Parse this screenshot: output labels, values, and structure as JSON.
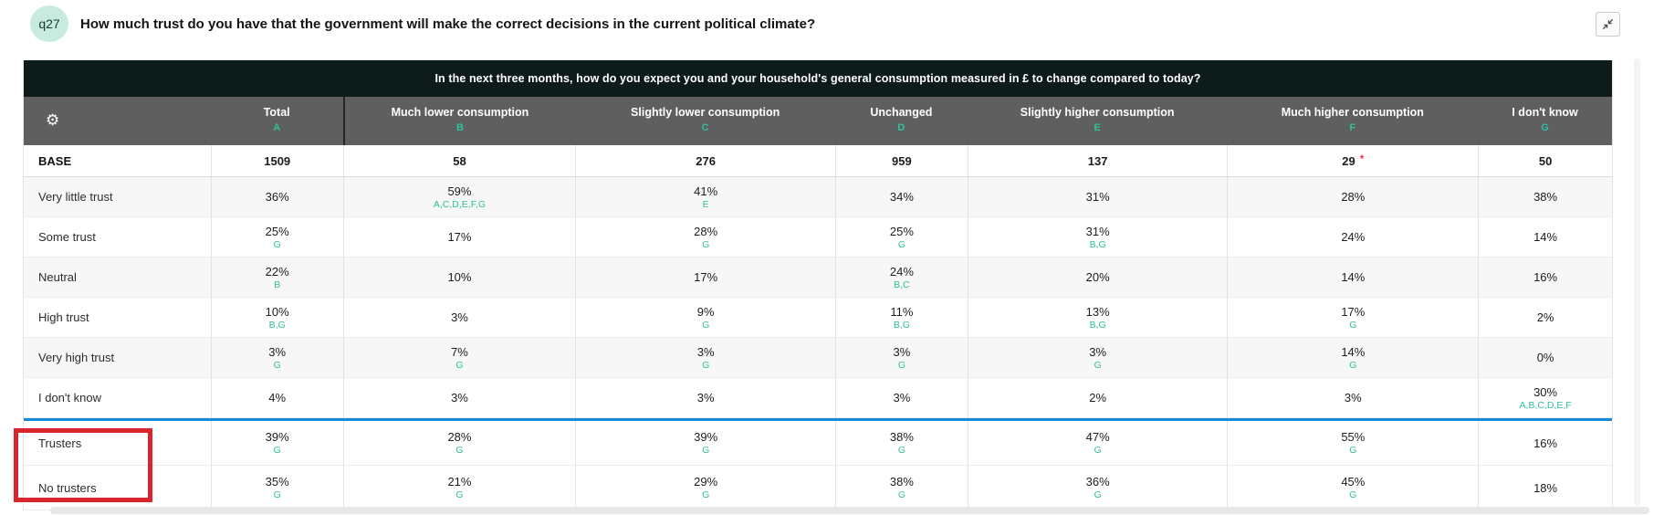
{
  "question": {
    "id": "q27",
    "text": "How much trust do you have that the government will make the correct decisions in the current political climate?"
  },
  "banner_question": "In the next three months, how do you expect you and your household's general consumption measured in £ to change compared to today?",
  "columns": [
    {
      "label": "Total",
      "letter": "A"
    },
    {
      "label": "Much lower consumption",
      "letter": "B"
    },
    {
      "label": "Slightly lower consumption",
      "letter": "C"
    },
    {
      "label": "Unchanged",
      "letter": "D"
    },
    {
      "label": "Slightly higher consumption",
      "letter": "E"
    },
    {
      "label": "Much higher consumption",
      "letter": "F"
    },
    {
      "label": "I don't know",
      "letter": "G"
    }
  ],
  "base_row": {
    "label": "BASE",
    "values": [
      "1509",
      "58",
      "276",
      "959",
      "137",
      "29",
      "50"
    ],
    "low_base_flag_column": "F",
    "low_base_marker": "*"
  },
  "rows": [
    {
      "label": "Very little trust",
      "cells": [
        {
          "v": "36%",
          "sig": ""
        },
        {
          "v": "59%",
          "sig": "A,C,D,E,F,G"
        },
        {
          "v": "41%",
          "sig": "E"
        },
        {
          "v": "34%",
          "sig": ""
        },
        {
          "v": "31%",
          "sig": ""
        },
        {
          "v": "28%",
          "sig": ""
        },
        {
          "v": "38%",
          "sig": ""
        }
      ]
    },
    {
      "label": "Some trust",
      "cells": [
        {
          "v": "25%",
          "sig": "G"
        },
        {
          "v": "17%",
          "sig": ""
        },
        {
          "v": "28%",
          "sig": "G"
        },
        {
          "v": "25%",
          "sig": "G"
        },
        {
          "v": "31%",
          "sig": "B,G"
        },
        {
          "v": "24%",
          "sig": ""
        },
        {
          "v": "14%",
          "sig": ""
        }
      ]
    },
    {
      "label": "Neutral",
      "cells": [
        {
          "v": "22%",
          "sig": "B"
        },
        {
          "v": "10%",
          "sig": ""
        },
        {
          "v": "17%",
          "sig": ""
        },
        {
          "v": "24%",
          "sig": "B,C"
        },
        {
          "v": "20%",
          "sig": ""
        },
        {
          "v": "14%",
          "sig": ""
        },
        {
          "v": "16%",
          "sig": ""
        }
      ]
    },
    {
      "label": "High trust",
      "cells": [
        {
          "v": "10%",
          "sig": "B,G"
        },
        {
          "v": "3%",
          "sig": ""
        },
        {
          "v": "9%",
          "sig": "G"
        },
        {
          "v": "11%",
          "sig": "B,G"
        },
        {
          "v": "13%",
          "sig": "B,G"
        },
        {
          "v": "17%",
          "sig": "G"
        },
        {
          "v": "2%",
          "sig": ""
        }
      ]
    },
    {
      "label": "Very high trust",
      "cells": [
        {
          "v": "3%",
          "sig": "G"
        },
        {
          "v": "7%",
          "sig": "G"
        },
        {
          "v": "3%",
          "sig": "G"
        },
        {
          "v": "3%",
          "sig": "G"
        },
        {
          "v": "3%",
          "sig": "G"
        },
        {
          "v": "14%",
          "sig": "G"
        },
        {
          "v": "0%",
          "sig": ""
        }
      ]
    },
    {
      "label": "I don't know",
      "cells": [
        {
          "v": "4%",
          "sig": ""
        },
        {
          "v": "3%",
          "sig": ""
        },
        {
          "v": "3%",
          "sig": ""
        },
        {
          "v": "3%",
          "sig": ""
        },
        {
          "v": "2%",
          "sig": ""
        },
        {
          "v": "3%",
          "sig": ""
        },
        {
          "v": "30%",
          "sig": "A,B,C,D,E,F"
        }
      ]
    }
  ],
  "summary_rows": [
    {
      "label": "Trusters",
      "cells": [
        {
          "v": "39%",
          "sig": "G"
        },
        {
          "v": "28%",
          "sig": "G"
        },
        {
          "v": "39%",
          "sig": "G"
        },
        {
          "v": "38%",
          "sig": "G"
        },
        {
          "v": "47%",
          "sig": "G"
        },
        {
          "v": "55%",
          "sig": "G"
        },
        {
          "v": "16%",
          "sig": ""
        }
      ]
    },
    {
      "label": "No trusters",
      "cells": [
        {
          "v": "35%",
          "sig": "G"
        },
        {
          "v": "21%",
          "sig": "G"
        },
        {
          "v": "29%",
          "sig": "G"
        },
        {
          "v": "38%",
          "sig": "G"
        },
        {
          "v": "36%",
          "sig": "G"
        },
        {
          "v": "45%",
          "sig": "G"
        },
        {
          "v": "18%",
          "sig": ""
        }
      ]
    }
  ],
  "icons": {
    "settings": "gear-icon",
    "collapse": "collapse-arrows-icon"
  },
  "colors": {
    "accent_teal": "#2ec19b",
    "banner_bg": "#0d1b1b",
    "header_bg": "#5f5f5f",
    "divider_blue": "#1789d6",
    "highlight_red": "#d8262c",
    "low_base_red": "#f23a5e",
    "badge_bg": "#c7ecdf"
  }
}
